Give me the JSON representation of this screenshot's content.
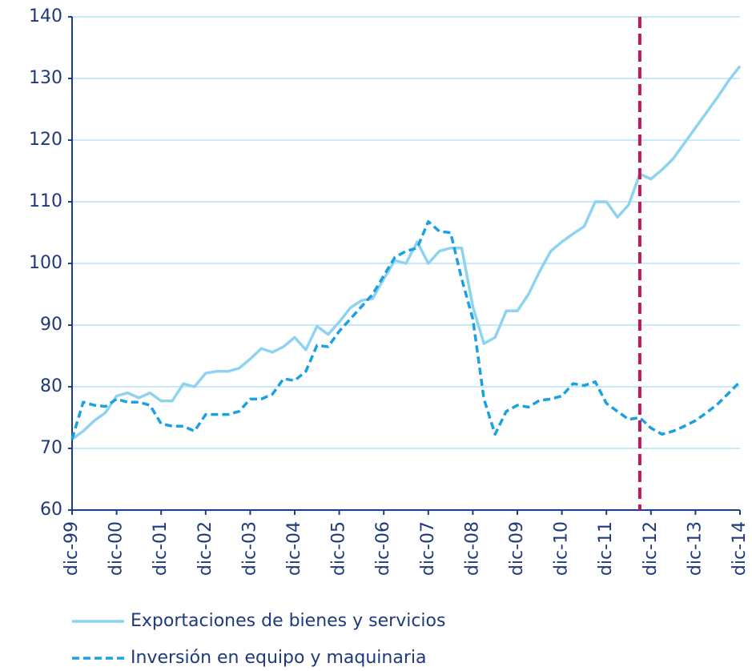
{
  "chart_data": {
    "type": "line",
    "categories": [
      "dic-99",
      null,
      null,
      null,
      "dic-00",
      null,
      null,
      null,
      "dic-01",
      null,
      null,
      null,
      "dic-02",
      null,
      null,
      null,
      "dic-03",
      null,
      null,
      null,
      "dic-04",
      null,
      null,
      null,
      "dic-05",
      null,
      null,
      null,
      "dic-06",
      null,
      null,
      null,
      "dic-07",
      null,
      null,
      null,
      "dic-08",
      null,
      null,
      null,
      "dic-09",
      null,
      null,
      null,
      "dic-10",
      null,
      null,
      null,
      "dic-11",
      null,
      null,
      null,
      "dic-12",
      null,
      null,
      null,
      "dic-13",
      null,
      null,
      null,
      "dic-14"
    ],
    "series": [
      {
        "name": "Exportaciones de bienes y servicios",
        "color": "#8ed3f0",
        "dashed": false,
        "values": [
          71.5,
          72.8,
          74.5,
          75.8,
          78.5,
          79,
          78.2,
          79,
          77.7,
          77.7,
          80.5,
          80,
          82.2,
          82.5,
          82.5,
          83,
          84.5,
          86.2,
          85.6,
          86.5,
          88,
          86,
          89.8,
          88.5,
          90.5,
          92.8,
          94,
          94.3,
          97.5,
          100.5,
          100,
          103.5,
          100,
          102,
          102.5,
          102.5,
          93,
          87,
          88,
          92.3,
          92.3,
          95,
          98.7,
          102,
          103.5,
          104.8,
          106,
          110,
          110,
          107.5,
          109.5,
          114.5,
          113.7,
          115.2,
          117,
          119.5,
          122,
          124.5,
          127,
          129.7,
          132
        ]
      },
      {
        "name": "Inversión en equipo y maquinaria",
        "color": "#1ba1e2",
        "dashed": true,
        "values": [
          71.5,
          77.5,
          77,
          76.8,
          78,
          77.5,
          77.5,
          77,
          74,
          73.6,
          73.6,
          72.8,
          75.5,
          75.5,
          75.5,
          76,
          78,
          78,
          78.8,
          81.3,
          81,
          82.5,
          86.7,
          86.5,
          89,
          91,
          93,
          95,
          98,
          101,
          102,
          102.5,
          106.8,
          105.2,
          105,
          97.5,
          91,
          78,
          72.3,
          76,
          77,
          76.7,
          77.8,
          78,
          78.5,
          80.5,
          80.2,
          80.8,
          77.3,
          76,
          74.7,
          75,
          73.3,
          72.3,
          72.8,
          73.6,
          74.5,
          75.8,
          77.2,
          79,
          80.8
        ]
      }
    ],
    "ylim": [
      60,
      140
    ],
    "yticks": [
      60,
      70,
      80,
      90,
      100,
      110,
      120,
      130,
      140
    ],
    "grid": true,
    "vline": {
      "x_index": 51,
      "color": "#c0185a"
    },
    "legend": "bottom"
  }
}
